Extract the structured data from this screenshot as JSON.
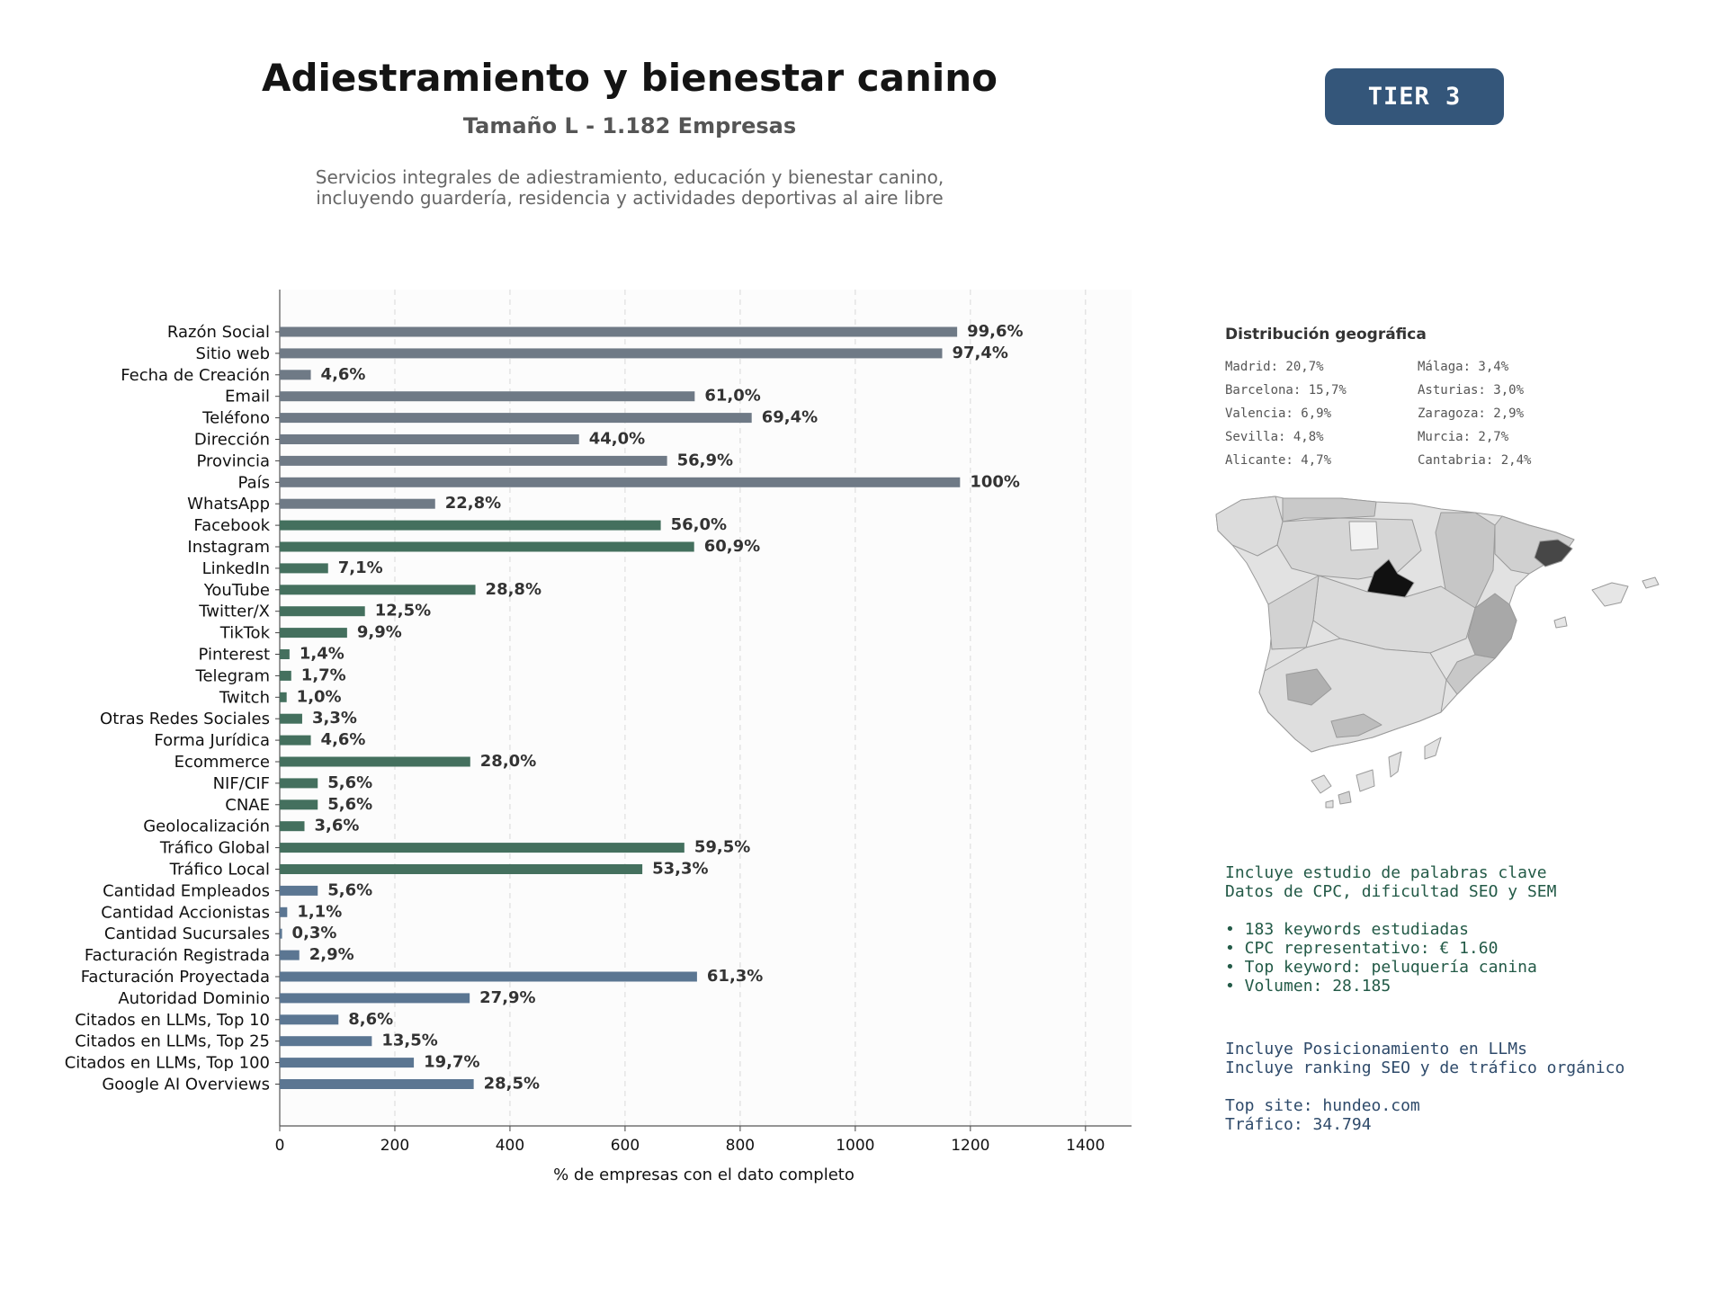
{
  "header": {
    "title": "Adiestramiento y bienestar canino",
    "subtitle": "Tamaño L - 1.182 Empresas",
    "description": "Servicios integrales de adiestramiento, educación y bienestar canino, incluyendo guardería, residencia y actividades deportivas al aire libre",
    "tier_badge": "TIER 3"
  },
  "colors": {
    "gray_bar": "#6f7a86",
    "green_bar": "#44705e",
    "blue_bar": "#5b7692",
    "tier_bg": "#34567a",
    "map_highlight": "#111111"
  },
  "chart_data": {
    "type": "bar",
    "orientation": "horizontal",
    "xlabel": "% de empresas con el dato completo",
    "xlim": [
      0,
      1480
    ],
    "xticks": [
      0,
      200,
      400,
      600,
      800,
      1000,
      1200,
      1400
    ],
    "grid": "vertical dashed",
    "categories": [
      "Razón Social",
      "Sitio web",
      "Fecha de Creación",
      "Email",
      "Teléfono",
      "Dirección",
      "Provincia",
      "País",
      "WhatsApp",
      "Facebook",
      "Instagram",
      "LinkedIn",
      "YouTube",
      "Twitter/X",
      "TikTok",
      "Pinterest",
      "Telegram",
      "Twitch",
      "Otras Redes Sociales",
      "Forma Jurídica",
      "Ecommerce",
      "NIF/CIF",
      "CNAE",
      "Geolocalización",
      "Tráfico Global",
      "Tráfico Local",
      "Cantidad Empleados",
      "Cantidad Accionistas",
      "Cantidad Sucursales",
      "Facturación Registrada",
      "Facturación Proyectada",
      "Autoridad Dominio",
      "Citados en LLMs, Top 10",
      "Citados en LLMs, Top 25",
      "Citados en LLMs, Top 100",
      "Google AI Overviews"
    ],
    "values": [
      1177,
      1151,
      54,
      721,
      820,
      520,
      673,
      1182,
      270,
      662,
      720,
      84,
      340,
      148,
      117,
      17,
      20,
      12,
      39,
      54,
      331,
      66,
      66,
      43,
      703,
      630,
      66,
      13,
      4,
      34,
      725,
      330,
      102,
      160,
      233,
      337
    ],
    "labels": [
      "99,6%",
      "97,4%",
      "4,6%",
      "61,0%",
      "69,4%",
      "44,0%",
      "56,9%",
      "100%",
      "22,8%",
      "56,0%",
      "60,9%",
      "7,1%",
      "28,8%",
      "12,5%",
      "9,9%",
      "1,4%",
      "1,7%",
      "1,0%",
      "3,3%",
      "4,6%",
      "28,0%",
      "5,6%",
      "5,6%",
      "3,6%",
      "59,5%",
      "53,3%",
      "5,6%",
      "1,1%",
      "0,3%",
      "2,9%",
      "61,3%",
      "27,9%",
      "8,6%",
      "13,5%",
      "19,7%",
      "28,5%"
    ],
    "groups": [
      "gray",
      "gray",
      "gray",
      "gray",
      "gray",
      "gray",
      "gray",
      "gray",
      "gray",
      "green",
      "green",
      "green",
      "green",
      "green",
      "green",
      "green",
      "green",
      "green",
      "green",
      "green",
      "green",
      "green",
      "green",
      "green",
      "green",
      "green",
      "blue",
      "blue",
      "blue",
      "blue",
      "blue",
      "blue",
      "blue",
      "blue",
      "blue",
      "blue"
    ]
  },
  "geo": {
    "title": "Distribución geográfica",
    "items": [
      "Madrid: 20,7%",
      "Málaga: 3,4%",
      "Barcelona: 15,7%",
      "Asturias: 3,0%",
      "Valencia: 6,9%",
      "Zaragoza: 2,9%",
      "Sevilla: 4,8%",
      "Murcia: 2,7%",
      "Alicante: 4,7%",
      "Cantabria: 2,4%"
    ]
  },
  "keywords": {
    "text": "Incluye estudio de palabras clave\nDatos de CPC, dificultad SEO y SEM\n\n• 183 keywords estudiadas\n• CPC representativo: € 1.60\n• Top keyword: peluquería canina\n• Volumen: 28.185"
  },
  "llm": {
    "text": "Incluye Posicionamiento en LLMs\nIncluye ranking SEO y de tráfico orgánico\n\nTop site: hundeo.com\nTráfico: 34.794"
  }
}
